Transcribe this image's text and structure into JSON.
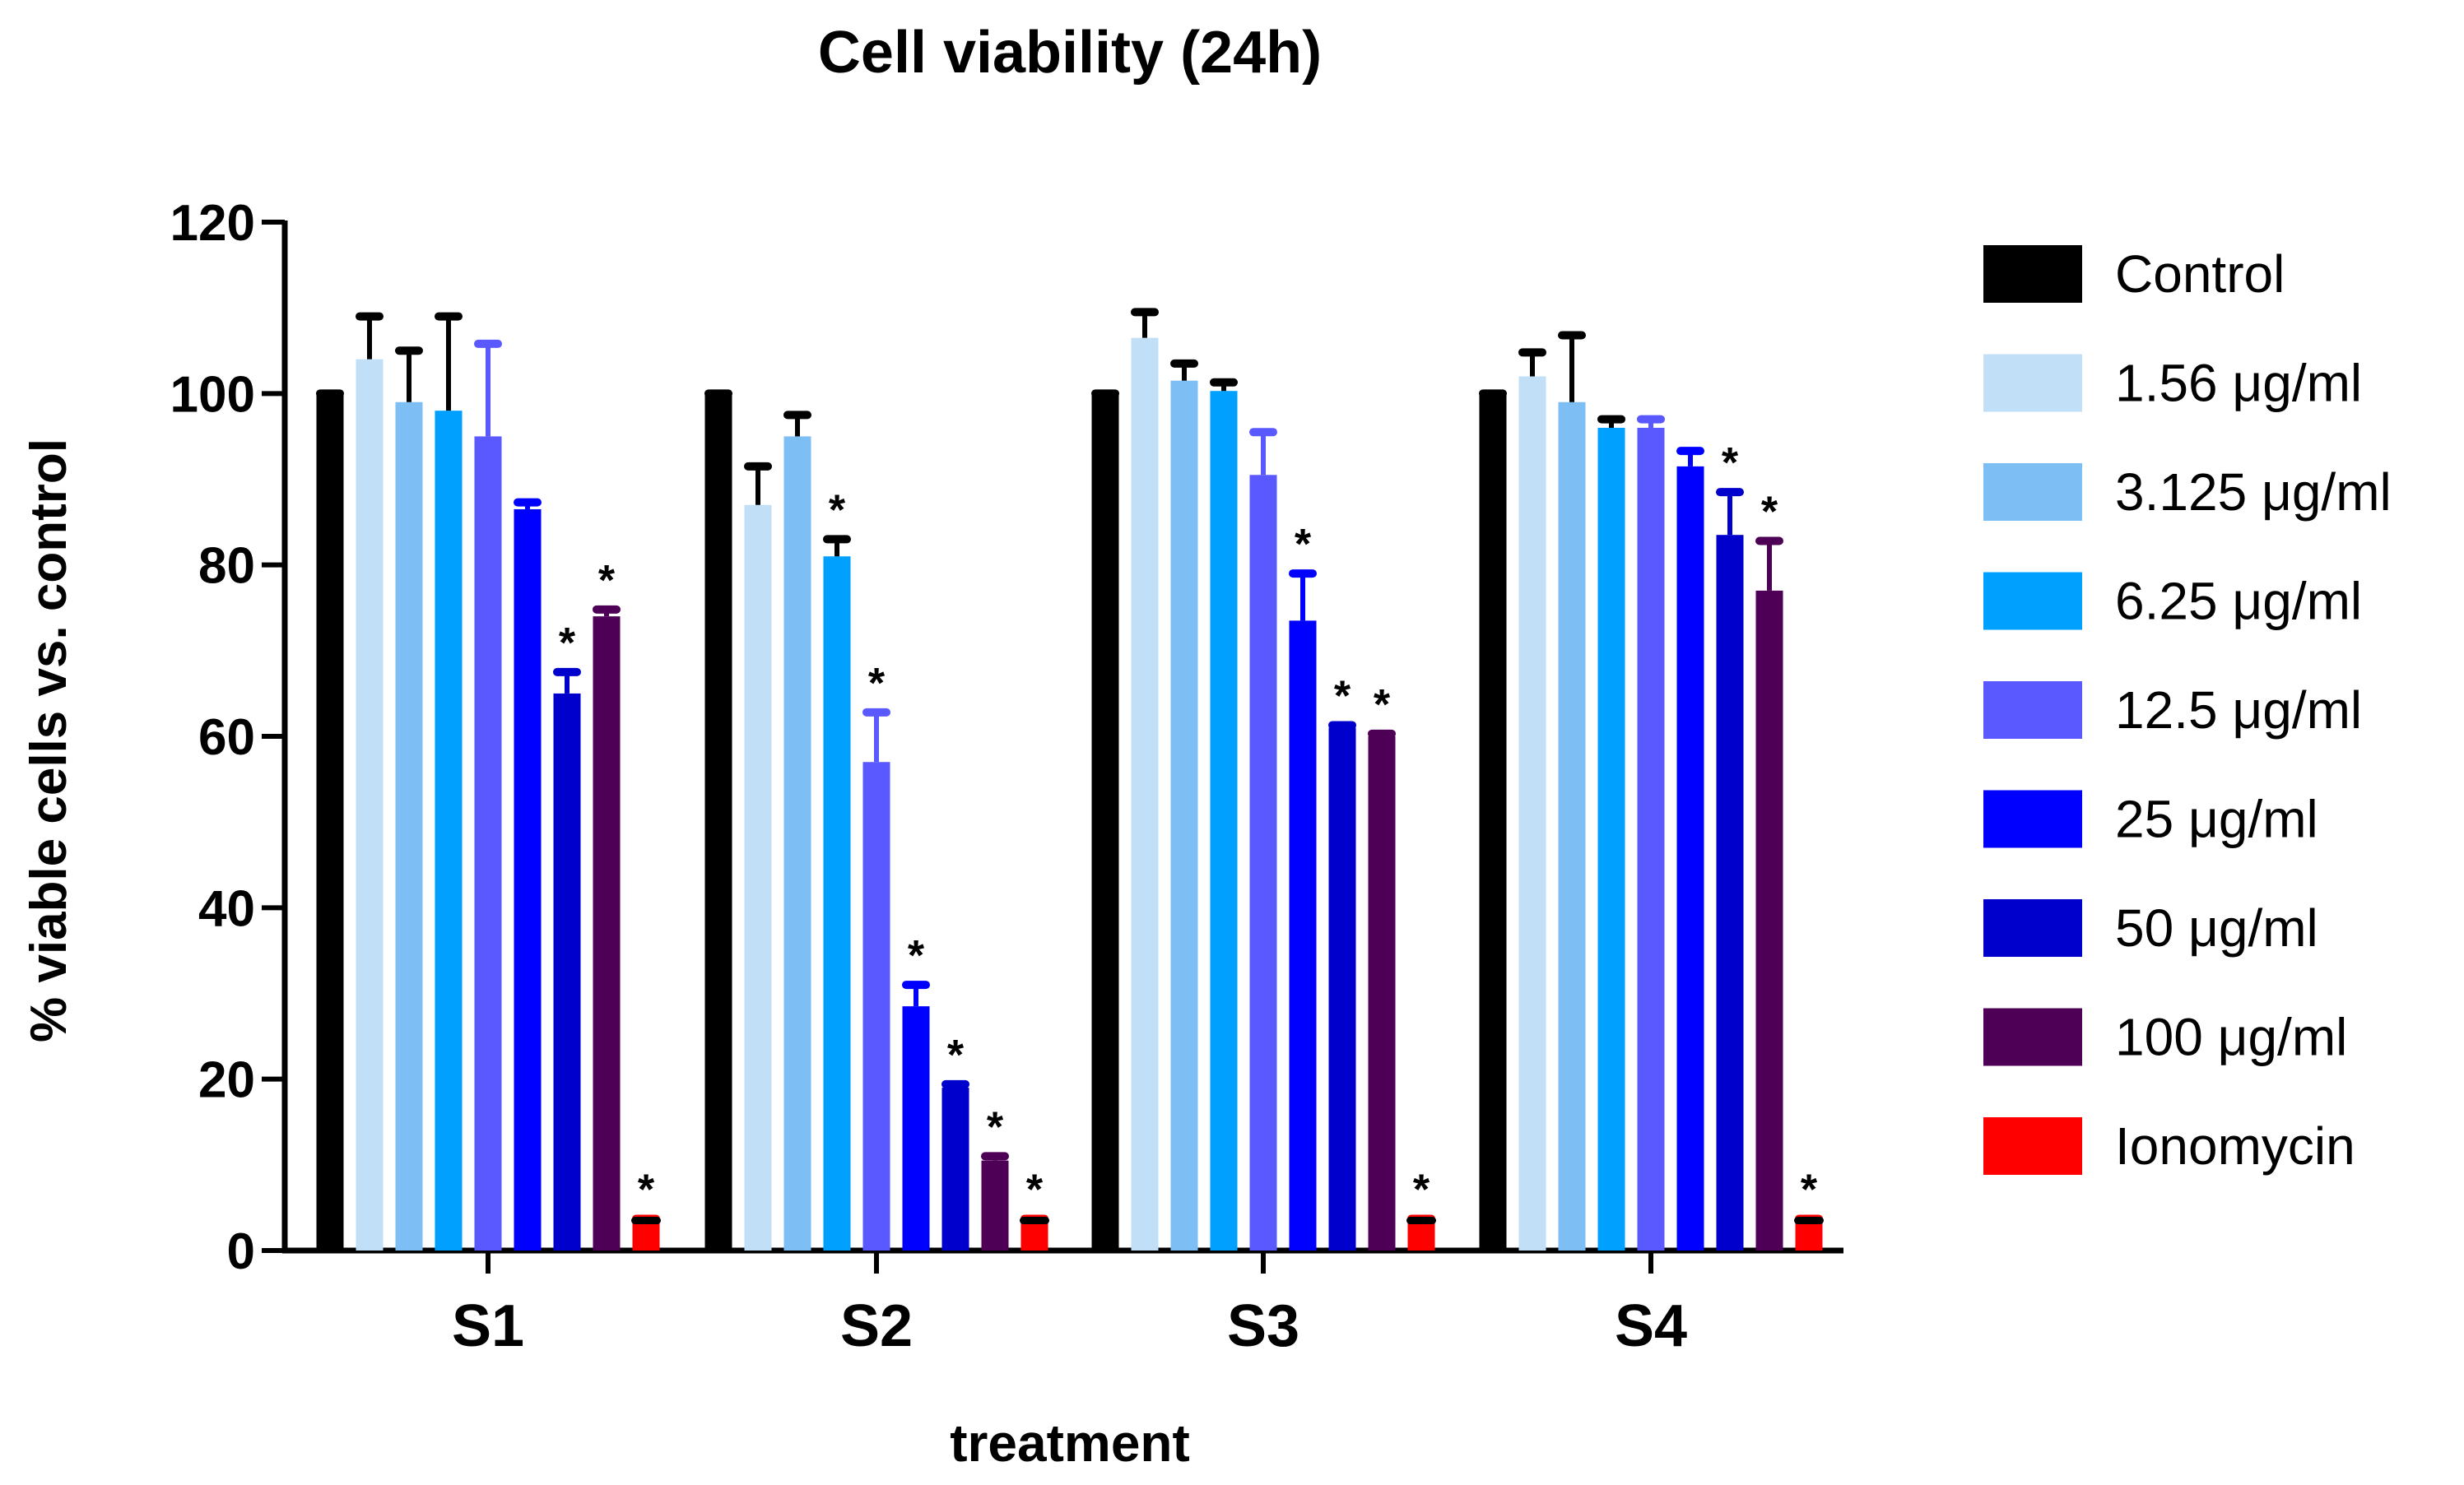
{
  "chart_data": {
    "type": "bar",
    "title": "Cell viability (24h)",
    "xlabel": "treatment",
    "ylabel": "% viable cells vs. control",
    "ylim": [
      0,
      120
    ],
    "yticks": [
      0,
      20,
      40,
      60,
      80,
      100,
      120
    ],
    "categories": [
      "S1",
      "S2",
      "S3",
      "S4"
    ],
    "significance_marker": "*",
    "legend_position": "right",
    "series": [
      {
        "name": "Control",
        "color": "#000000",
        "values": [
          100,
          100,
          100,
          100
        ],
        "errors": [
          0,
          0,
          0,
          0
        ],
        "significant": [
          false,
          false,
          false,
          false
        ]
      },
      {
        "name": "1.56 μg/ml",
        "color": "#c2dff8",
        "values": [
          104,
          87,
          106.5,
          102
        ],
        "errors": [
          5,
          4.5,
          3,
          2.8
        ],
        "significant": [
          false,
          false,
          false,
          false
        ]
      },
      {
        "name": "3.125 μg/ml",
        "color": "#7dbff5",
        "values": [
          99,
          95,
          101.5,
          99
        ],
        "errors": [
          6,
          2.5,
          2,
          7.8
        ],
        "significant": [
          false,
          false,
          false,
          false
        ]
      },
      {
        "name": "6.25 μg/ml",
        "color": "#00a0ff",
        "values": [
          98,
          81,
          100.3,
          96
        ],
        "errors": [
          11,
          2,
          1,
          1
        ],
        "significant": [
          false,
          true,
          false,
          false
        ]
      },
      {
        "name": "12.5 μg/ml",
        "color": "#5959ff",
        "values": [
          95,
          57,
          90.5,
          96
        ],
        "errors": [
          10.8,
          5.8,
          5,
          1
        ],
        "significant": [
          false,
          true,
          false,
          false
        ]
      },
      {
        "name": "25 μg/ml",
        "color": "#0000ff",
        "values": [
          86.5,
          28.5,
          73.5,
          91.5
        ],
        "errors": [
          0.8,
          2.5,
          5.5,
          1.8
        ],
        "significant": [
          false,
          true,
          true,
          false
        ]
      },
      {
        "name": "50 μg/ml",
        "color": "#0000cc",
        "values": [
          65,
          19,
          61,
          83.5
        ],
        "errors": [
          2.5,
          0.4,
          0.3,
          5
        ],
        "significant": [
          true,
          true,
          true,
          true
        ]
      },
      {
        "name": "100 μg/ml",
        "color": "#4d0055",
        "values": [
          74,
          10.5,
          60,
          77
        ],
        "errors": [
          0.8,
          0.5,
          0.3,
          5.8
        ],
        "significant": [
          true,
          true,
          true,
          true
        ]
      },
      {
        "name": "Ionomycin",
        "color": "#ff0000",
        "values": [
          3.5,
          3.5,
          3.5,
          3.5
        ],
        "errors": [
          0.2,
          0.2,
          0.2,
          0.2
        ],
        "significant": [
          true,
          true,
          true,
          true
        ]
      }
    ]
  }
}
